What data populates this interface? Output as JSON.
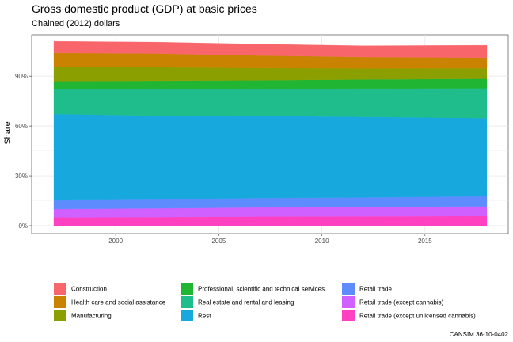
{
  "chart_data": {
    "type": "area",
    "stacked": true,
    "title": "Gross domestic product (GDP) at basic prices",
    "subtitle": "Chained (2012) dollars",
    "xlabel": "",
    "ylabel": "Share",
    "caption": "CANSIM 36-10-0402",
    "x": [
      1997,
      2002,
      2007,
      2012,
      2018
    ],
    "xlim": [
      1997,
      2018
    ],
    "ylim": [
      0,
      1.12
    ],
    "x_ticks": [
      2000,
      2005,
      2010,
      2015
    ],
    "x_tick_labels": [
      "2000",
      "2005",
      "2010",
      "2015"
    ],
    "y_ticks": [
      0,
      0.3,
      0.6,
      0.9
    ],
    "y_tick_labels": [
      "0%",
      "30%",
      "60%",
      "90%"
    ],
    "grid": true,
    "legend_position": "bottom",
    "series": [
      {
        "name": "Retail trade (except unlicensed cannabis)",
        "color": "#FF41C1",
        "values": [
          0.05,
          0.052,
          0.055,
          0.056,
          0.058
        ]
      },
      {
        "name": "Retail trade (except cannabis)",
        "color": "#D060FF",
        "values": [
          0.05,
          0.052,
          0.055,
          0.056,
          0.058
        ]
      },
      {
        "name": "Retail trade",
        "color": "#5E8CFF",
        "values": [
          0.052,
          0.053,
          0.056,
          0.058,
          0.061
        ]
      },
      {
        "name": "Rest",
        "color": "#17A9DE",
        "values": [
          0.52,
          0.505,
          0.495,
          0.485,
          0.47
        ]
      },
      {
        "name": "Real estate and rental and leasing",
        "color": "#1FBC8C",
        "values": [
          0.15,
          0.16,
          0.162,
          0.17,
          0.18
        ]
      },
      {
        "name": "Professional, scientific and technical services",
        "color": "#20B533",
        "values": [
          0.048,
          0.05,
          0.052,
          0.055,
          0.057
        ]
      },
      {
        "name": "Manufacturing",
        "color": "#8BA000",
        "values": [
          0.085,
          0.082,
          0.074,
          0.067,
          0.064
        ]
      },
      {
        "name": "Health care and social assistance",
        "color": "#CA8201",
        "values": [
          0.085,
          0.082,
          0.075,
          0.068,
          0.063
        ]
      },
      {
        "name": "Construction",
        "color": "#F8666B",
        "values": [
          0.07,
          0.069,
          0.069,
          0.068,
          0.075
        ]
      }
    ],
    "legend": [
      {
        "name": "Construction",
        "color": "#F8666B"
      },
      {
        "name": "Health care and social assistance",
        "color": "#CA8201"
      },
      {
        "name": "Manufacturing",
        "color": "#8BA000"
      },
      {
        "name": "Professional, scientific and technical services",
        "color": "#20B533"
      },
      {
        "name": "Real estate and rental and leasing",
        "color": "#1FBC8C"
      },
      {
        "name": "Rest",
        "color": "#17A9DE"
      },
      {
        "name": "Retail trade",
        "color": "#5E8CFF"
      },
      {
        "name": "Retail trade (except cannabis)",
        "color": "#D060FF"
      },
      {
        "name": "Retail trade (except unlicensed cannabis)",
        "color": "#FF41C1"
      }
    ]
  }
}
